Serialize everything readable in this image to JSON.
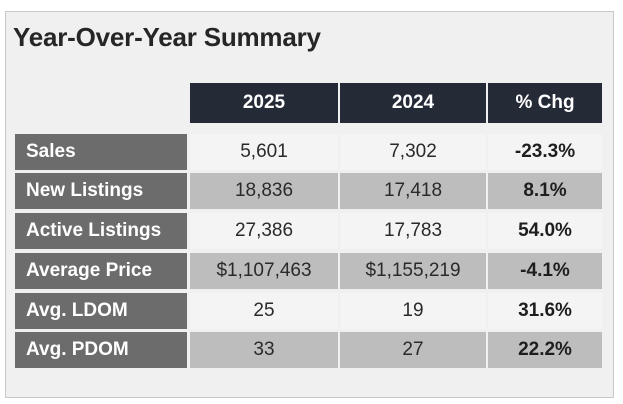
{
  "title": "Year-Over-Year Summary",
  "columns": [
    "2025",
    "2024",
    "% Chg"
  ],
  "rows": [
    {
      "label": "Sales",
      "v2025": "5,601",
      "v2024": "7,302",
      "chg": "-23.3%"
    },
    {
      "label": "New Listings",
      "v2025": "18,836",
      "v2024": "17,418",
      "chg": "8.1%"
    },
    {
      "label": "Active Listings",
      "v2025": "27,386",
      "v2024": "17,783",
      "chg": "54.0%"
    },
    {
      "label": "Average Price",
      "v2025": "$1,107,463",
      "v2024": "$1,155,219",
      "chg": "-4.1%"
    },
    {
      "label": "Avg. LDOM",
      "v2025": "25",
      "v2024": "19",
      "chg": "31.6%"
    },
    {
      "label": "Avg. PDOM",
      "v2025": "33",
      "v2024": "27",
      "chg": "22.2%"
    }
  ],
  "colors": {
    "header_bg": "#252a37",
    "label_bg": "#6c6c6c",
    "cell_light": "#f4f4f4",
    "cell_dark": "#bdbdbd"
  }
}
